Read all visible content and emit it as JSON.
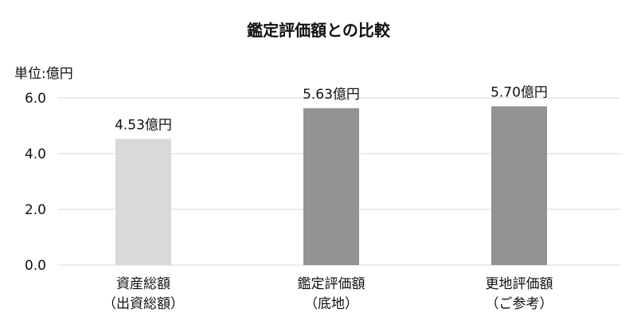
{
  "chart_data": {
    "type": "bar",
    "title": "鑑定評価額との比較",
    "unit_label": "単位:億円",
    "categories": [
      [
        "資産総額",
        "（出資総額）"
      ],
      [
        "鑑定評価額",
        "（底地）"
      ],
      [
        "更地評価額",
        "（ご参考）"
      ]
    ],
    "values": [
      4.53,
      5.63,
      5.7
    ],
    "data_labels": [
      "4.53億円",
      "5.63億円",
      "5.70億円"
    ],
    "colors": [
      "#d9d9d9",
      "#939393",
      "#939393"
    ],
    "ylim": [
      0,
      6
    ],
    "yticks": [
      "0.0",
      "2.0",
      "4.0",
      "6.0"
    ],
    "grid": true,
    "gridline_color": "#d9d9d9"
  }
}
